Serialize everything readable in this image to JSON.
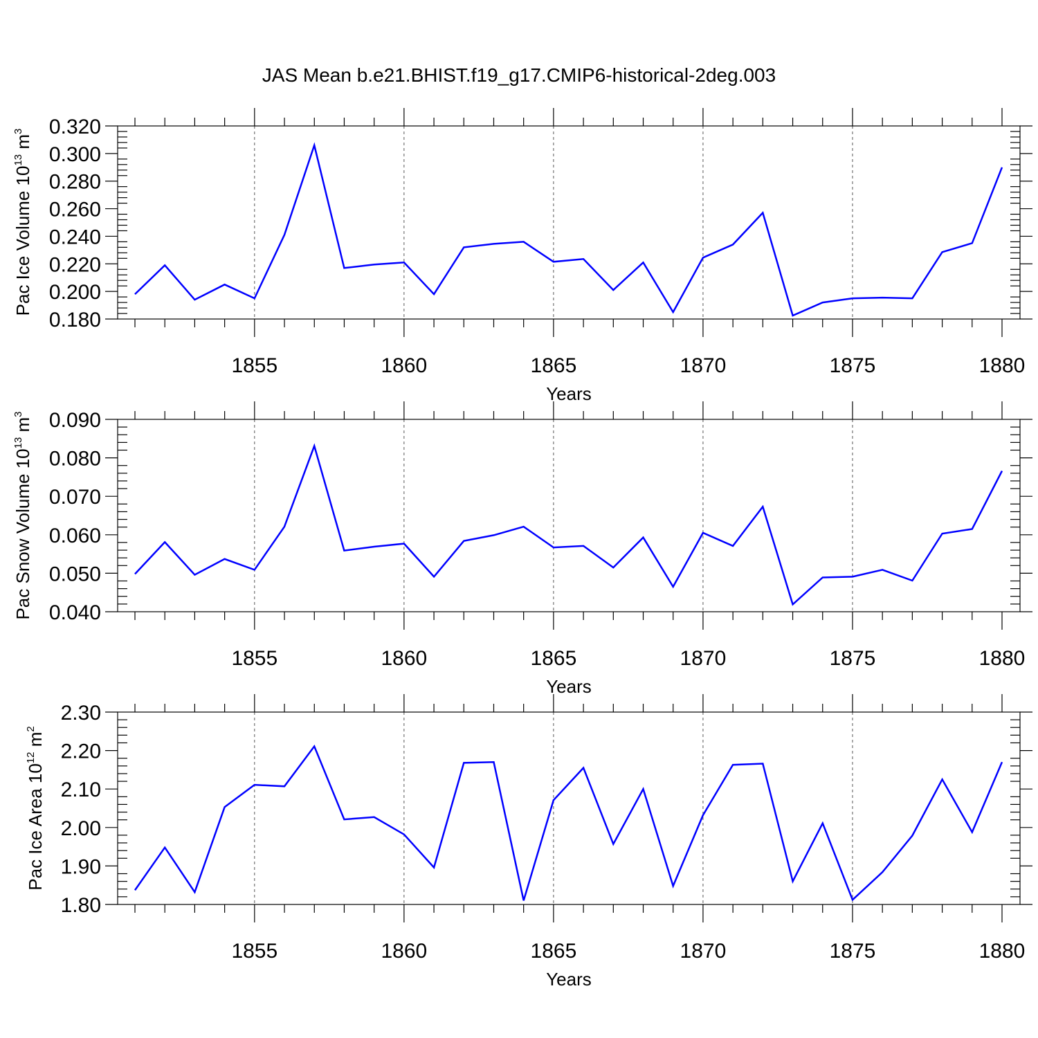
{
  "chart_data": [
    {
      "type": "line",
      "title": "JAS Mean b.e21.BHIST.f19_g17.CMIP6-historical-2deg.003",
      "xlabel": "Years",
      "ylabel": {
        "main": "Pac Ice Volume 10",
        "exp": "13",
        "unit": " m",
        "unit_exp": "3"
      },
      "xlim": [
        1851,
        1880
      ],
      "ylim": [
        0.18,
        0.32
      ],
      "x_ticks": [
        1855,
        1860,
        1865,
        1870,
        1875,
        1880
      ],
      "y_ticks": [
        "0.180",
        "0.200",
        "0.220",
        "0.240",
        "0.260",
        "0.280",
        "0.300",
        "0.320"
      ],
      "y_tick_values": [
        0.18,
        0.2,
        0.22,
        0.24,
        0.26,
        0.28,
        0.3,
        0.32
      ],
      "grid": "dashed vertical at major x ticks",
      "color": "#0000ff",
      "x": [
        1851,
        1852,
        1853,
        1854,
        1855,
        1856,
        1857,
        1858,
        1859,
        1860,
        1861,
        1862,
        1863,
        1864,
        1865,
        1866,
        1867,
        1868,
        1869,
        1870,
        1871,
        1872,
        1873,
        1874,
        1875,
        1876,
        1877,
        1878,
        1879,
        1880
      ],
      "values": [
        0.198,
        0.219,
        0.194,
        0.205,
        0.195,
        0.241,
        0.306,
        0.217,
        0.2195,
        0.221,
        0.198,
        0.232,
        0.2345,
        0.236,
        0.2215,
        0.2235,
        0.201,
        0.221,
        0.185,
        0.2245,
        0.234,
        0.257,
        0.1825,
        0.192,
        0.195,
        0.1955,
        0.195,
        0.2285,
        0.235,
        0.29
      ]
    },
    {
      "type": "line",
      "title": "",
      "xlabel": "Years",
      "ylabel": {
        "main": "Pac Snow Volume 10",
        "exp": "13",
        "unit": " m",
        "unit_exp": "3"
      },
      "xlim": [
        1851,
        1880
      ],
      "ylim": [
        0.04,
        0.09
      ],
      "x_ticks": [
        1855,
        1860,
        1865,
        1870,
        1875,
        1880
      ],
      "y_ticks": [
        "0.040",
        "0.050",
        "0.060",
        "0.070",
        "0.080",
        "0.090"
      ],
      "y_tick_values": [
        0.04,
        0.05,
        0.06,
        0.07,
        0.08,
        0.09
      ],
      "grid": "dashed vertical at major x ticks",
      "color": "#0000ff",
      "x": [
        1851,
        1852,
        1853,
        1854,
        1855,
        1856,
        1857,
        1858,
        1859,
        1860,
        1861,
        1862,
        1863,
        1864,
        1865,
        1866,
        1867,
        1868,
        1869,
        1870,
        1871,
        1872,
        1873,
        1874,
        1875,
        1876,
        1877,
        1878,
        1879,
        1880
      ],
      "values": [
        0.0498,
        0.0581,
        0.0496,
        0.0537,
        0.0509,
        0.0621,
        0.0831,
        0.0559,
        0.0569,
        0.0577,
        0.0491,
        0.0584,
        0.0599,
        0.0621,
        0.0567,
        0.0571,
        0.0515,
        0.0593,
        0.0465,
        0.0605,
        0.0571,
        0.0673,
        0.0419,
        0.0489,
        0.0491,
        0.0509,
        0.0481,
        0.0603,
        0.0615,
        0.0766
      ]
    },
    {
      "type": "line",
      "title": "",
      "xlabel": "Years",
      "ylabel": {
        "main": "Pac Ice Area 10",
        "exp": "12",
        "unit": " m",
        "unit_exp": "2"
      },
      "xlim": [
        1851,
        1880
      ],
      "ylim": [
        1.8,
        2.3
      ],
      "x_ticks": [
        1855,
        1860,
        1865,
        1870,
        1875,
        1880
      ],
      "y_ticks": [
        "1.80",
        "1.90",
        "2.00",
        "2.10",
        "2.20",
        "2.30"
      ],
      "y_tick_values": [
        1.8,
        1.9,
        2.0,
        2.1,
        2.2,
        2.3
      ],
      "grid": "dashed vertical at major x ticks",
      "color": "#0000ff",
      "x": [
        1851,
        1852,
        1853,
        1854,
        1855,
        1856,
        1857,
        1858,
        1859,
        1860,
        1861,
        1862,
        1863,
        1864,
        1865,
        1866,
        1867,
        1868,
        1869,
        1870,
        1871,
        1872,
        1873,
        1874,
        1875,
        1876,
        1877,
        1878,
        1879,
        1880
      ],
      "values": [
        1.837,
        1.948,
        1.832,
        2.053,
        2.111,
        2.107,
        2.211,
        2.021,
        2.027,
        1.982,
        1.896,
        2.168,
        2.17,
        1.81,
        2.071,
        2.155,
        1.957,
        2.1,
        1.848,
        2.032,
        2.163,
        2.166,
        1.86,
        2.011,
        1.812,
        1.884,
        1.979,
        2.125,
        1.988,
        2.17
      ]
    }
  ]
}
